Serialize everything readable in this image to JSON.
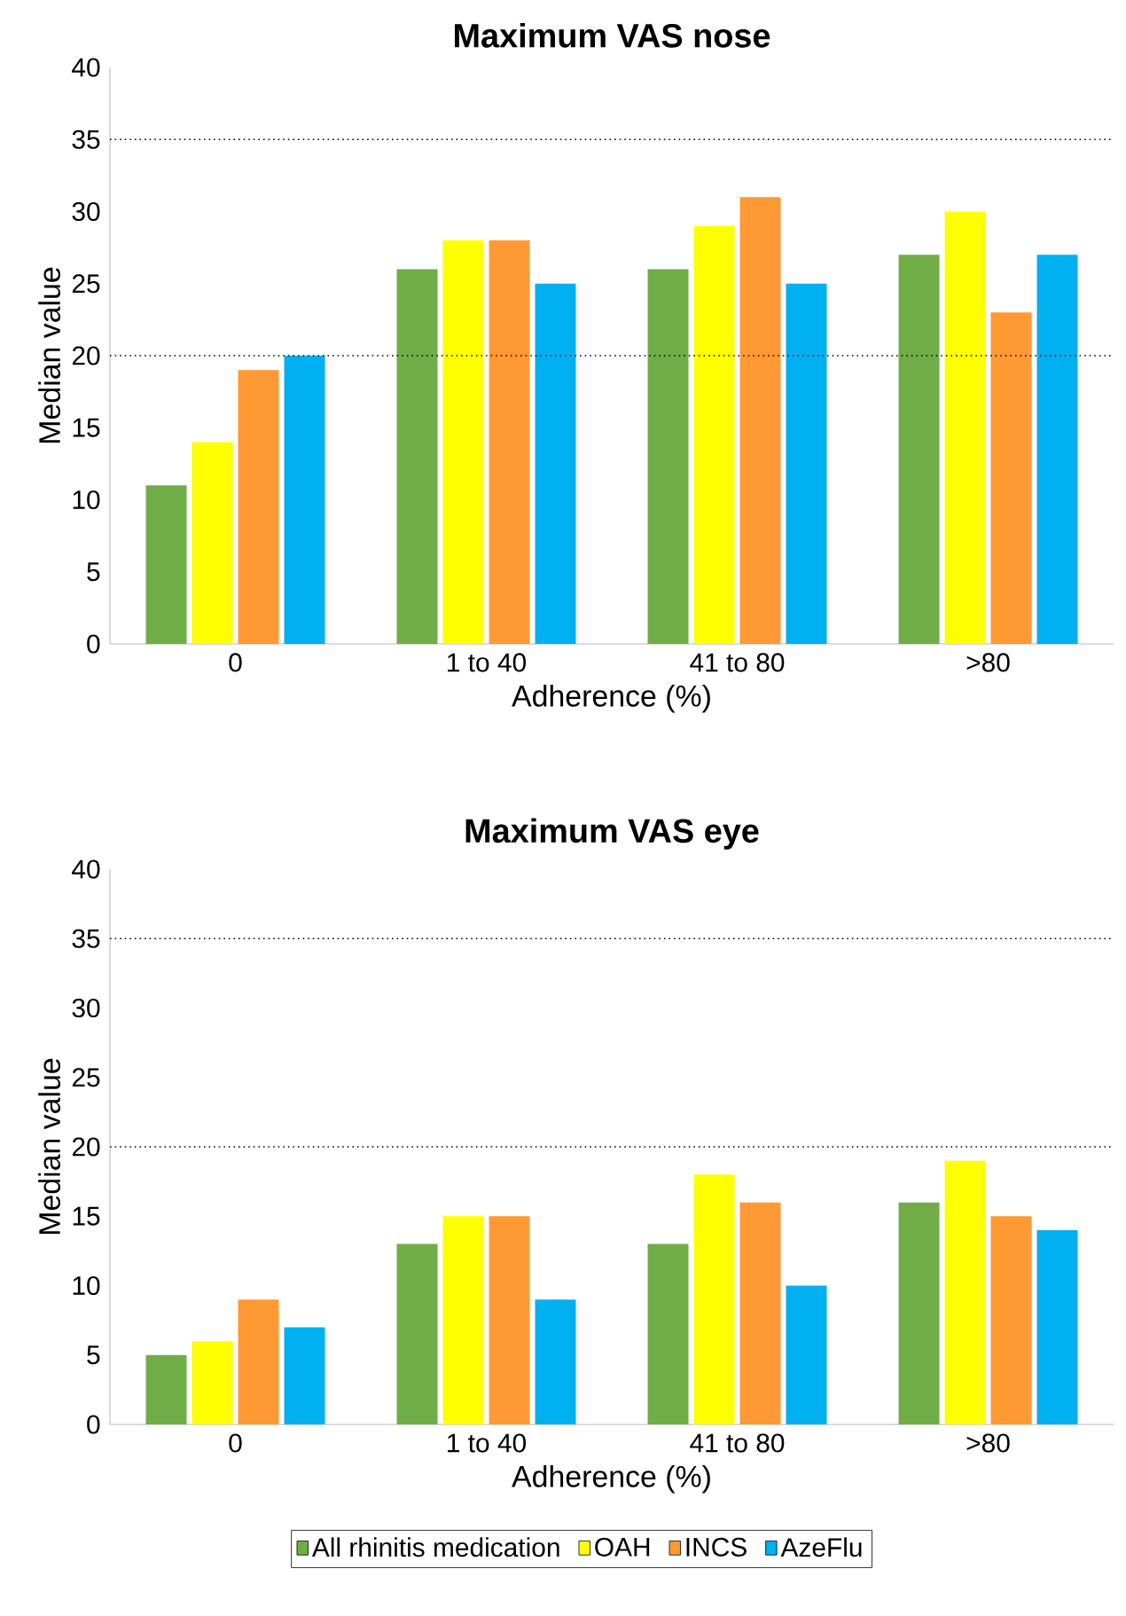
{
  "chart_data": [
    {
      "type": "bar",
      "title": "Maximum VAS nose",
      "xlabel": "Adherence (%)",
      "ylabel": "Median value",
      "categories": [
        "0",
        "1 to 40",
        "41 to 80",
        ">80"
      ],
      "ylim": [
        0,
        40
      ],
      "yticks": [
        0,
        5,
        10,
        15,
        20,
        25,
        30,
        35,
        40
      ],
      "grid": false,
      "legend": false,
      "ref_lines": [
        {
          "axis": "y",
          "value": 20,
          "line_style": "dotted"
        },
        {
          "axis": "y",
          "value": 35,
          "line_style": "dotted"
        }
      ],
      "series": [
        {
          "color": "#70ad47",
          "values": [
            11,
            26,
            26,
            27
          ]
        },
        {
          "color": "#ffff00",
          "values": [
            14,
            28,
            29,
            30
          ]
        },
        {
          "color": "#ff9933",
          "values": [
            19,
            28,
            31,
            23
          ]
        },
        {
          "color": "#00b0f0",
          "values": [
            20,
            25,
            25,
            27
          ]
        }
      ]
    },
    {
      "type": "bar",
      "title": "Maximum VAS eye",
      "xlabel": "Adherence (%)",
      "ylabel": "Median value",
      "categories": [
        "0",
        "1 to 40",
        "41 to 80",
        ">80"
      ],
      "ylim": [
        0,
        40
      ],
      "yticks": [
        0,
        5,
        10,
        15,
        20,
        25,
        30,
        35,
        40
      ],
      "grid": false,
      "legend": "bottom",
      "ref_lines": [
        {
          "axis": "y",
          "value": 20,
          "line_style": "dotted"
        },
        {
          "axis": "y",
          "value": 35,
          "line_style": "dotted"
        }
      ],
      "series": [
        {
          "name": "All rhinitis medication",
          "color": "#70ad47",
          "values": [
            5,
            13,
            13,
            16
          ]
        },
        {
          "name": "OAH",
          "color": "#ffff00",
          "values": [
            6,
            15,
            18,
            19
          ]
        },
        {
          "name": "INCS",
          "color": "#ff9933",
          "values": [
            9,
            15,
            16,
            15
          ]
        },
        {
          "name": "AzeFlu",
          "color": "#00b0f0",
          "values": [
            7,
            9,
            10,
            14
          ]
        }
      ]
    }
  ]
}
